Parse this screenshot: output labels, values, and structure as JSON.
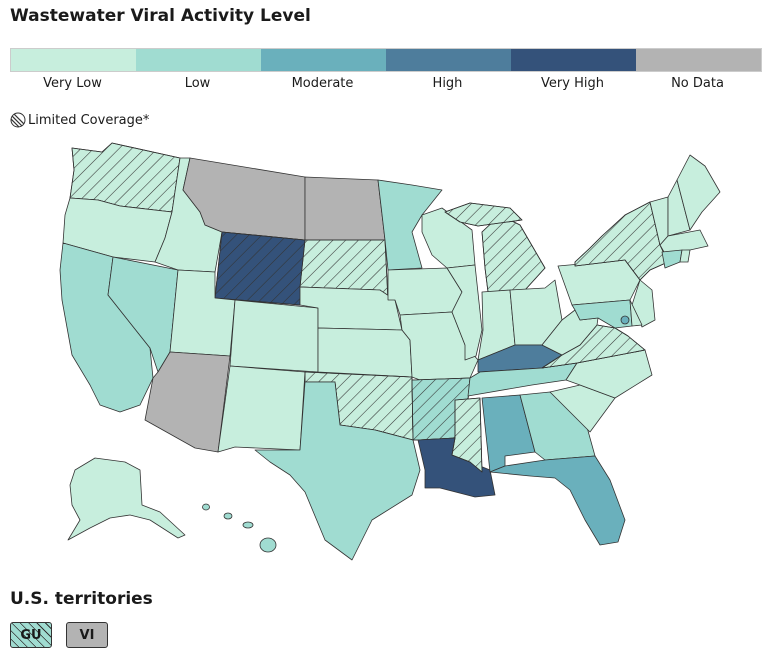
{
  "title": "Wastewater Viral Activity Level",
  "legend": [
    {
      "label": "Very Low",
      "color": "#c7eedd"
    },
    {
      "label": "Low",
      "color": "#a0dcd1"
    },
    {
      "label": "Moderate",
      "color": "#6ab0bc"
    },
    {
      "label": "High",
      "color": "#4e7d9c"
    },
    {
      "label": "Very High",
      "color": "#34527a"
    },
    {
      "label": "No Data",
      "color": "#b3b3b3"
    }
  ],
  "limited_coverage_label": "Limited Coverage*",
  "states": {
    "WA": {
      "level": "Very Low",
      "hatched": true
    },
    "OR": {
      "level": "Very Low",
      "hatched": false
    },
    "CA": {
      "level": "Low",
      "hatched": false
    },
    "NV": {
      "level": "Low",
      "hatched": false
    },
    "ID": {
      "level": "Very Low",
      "hatched": false
    },
    "MT": {
      "level": "No Data",
      "hatched": false
    },
    "WY": {
      "level": "Very High",
      "hatched": true
    },
    "UT": {
      "level": "Very Low",
      "hatched": false
    },
    "AZ": {
      "level": "No Data",
      "hatched": false
    },
    "CO": {
      "level": "Very Low",
      "hatched": false
    },
    "NM": {
      "level": "Very Low",
      "hatched": false
    },
    "ND": {
      "level": "No Data",
      "hatched": false
    },
    "SD": {
      "level": "Very Low",
      "hatched": true
    },
    "NE": {
      "level": "Very Low",
      "hatched": false
    },
    "KS": {
      "level": "Very Low",
      "hatched": false
    },
    "OK": {
      "level": "Very Low",
      "hatched": true
    },
    "TX": {
      "level": "Low",
      "hatched": false
    },
    "MN": {
      "level": "Low",
      "hatched": false
    },
    "IA": {
      "level": "Very Low",
      "hatched": false
    },
    "MO": {
      "level": "Very Low",
      "hatched": false
    },
    "AR": {
      "level": "Low",
      "hatched": true
    },
    "LA": {
      "level": "Very High",
      "hatched": false
    },
    "WI": {
      "level": "Very Low",
      "hatched": false
    },
    "IL": {
      "level": "Very Low",
      "hatched": false
    },
    "MI": {
      "level": "Very Low",
      "hatched": true
    },
    "IN": {
      "level": "Very Low",
      "hatched": false
    },
    "OH": {
      "level": "Very Low",
      "hatched": false
    },
    "KY": {
      "level": "High",
      "hatched": false
    },
    "TN": {
      "level": "Low",
      "hatched": false
    },
    "MS": {
      "level": "Very Low",
      "hatched": true
    },
    "AL": {
      "level": "Moderate",
      "hatched": false
    },
    "GA": {
      "level": "Low",
      "hatched": false
    },
    "FL": {
      "level": "Moderate",
      "hatched": false
    },
    "SC": {
      "level": "Very Low",
      "hatched": false
    },
    "NC": {
      "level": "Very Low",
      "hatched": false
    },
    "VA": {
      "level": "Very Low",
      "hatched": true
    },
    "WV": {
      "level": "Very Low",
      "hatched": false
    },
    "PA": {
      "level": "Very Low",
      "hatched": false
    },
    "NY": {
      "level": "Very Low",
      "hatched": true
    },
    "NJ": {
      "level": "Very Low",
      "hatched": false
    },
    "MD": {
      "level": "Low",
      "hatched": false
    },
    "DE": {
      "level": "Very Low",
      "hatched": false
    },
    "DC": {
      "level": "Moderate",
      "hatched": false
    },
    "VT": {
      "level": "Very Low",
      "hatched": false
    },
    "NH": {
      "level": "Very Low",
      "hatched": false
    },
    "ME": {
      "level": "Very Low",
      "hatched": false
    },
    "MA": {
      "level": "Very Low",
      "hatched": false
    },
    "CT": {
      "level": "Low",
      "hatched": false
    },
    "RI": {
      "level": "Very Low",
      "hatched": false
    },
    "AK": {
      "level": "Very Low",
      "hatched": false
    },
    "HI": {
      "level": "Low",
      "hatched": false
    }
  },
  "territories_title": "U.S. territories",
  "territories": [
    {
      "code": "GU",
      "level": "Low",
      "hatched": true
    },
    {
      "code": "VI",
      "level": "No Data",
      "hatched": false
    }
  ]
}
